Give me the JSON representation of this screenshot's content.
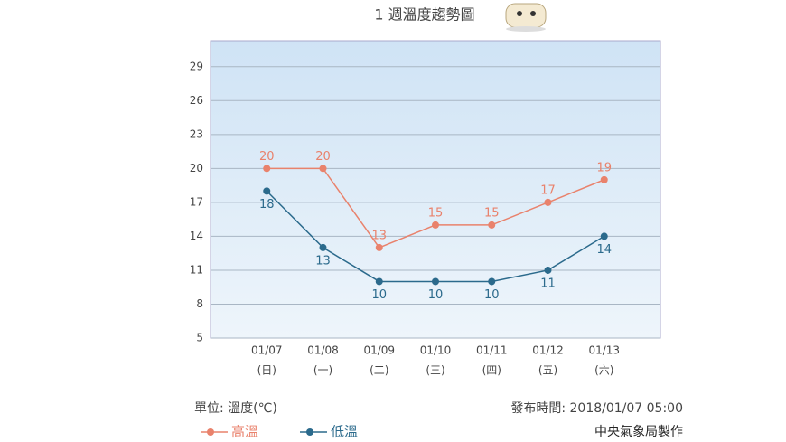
{
  "chart_data": {
    "type": "line",
    "title": "1 週溫度趨勢圖",
    "categories": [
      "01/07",
      "01/08",
      "01/09",
      "01/10",
      "01/11",
      "01/12",
      "01/13"
    ],
    "weekdays": [
      "(日)",
      "(一)",
      "(二)",
      "(三)",
      "(四)",
      "(五)",
      "(六)"
    ],
    "series": [
      {
        "name": "高溫",
        "color": "#e9826c",
        "values": [
          20,
          20,
          13,
          15,
          15,
          17,
          19
        ]
      },
      {
        "name": "低溫",
        "color": "#2b6a8c",
        "values": [
          18,
          13,
          10,
          10,
          10,
          11,
          14
        ]
      }
    ],
    "ylim": [
      5,
      31.3
    ],
    "yticks": [
      5,
      8,
      11,
      14,
      17,
      20,
      23,
      26,
      29
    ],
    "grid": true,
    "unit_note": "單位: 溫度(℃)",
    "issued_note": "發布時間: 2018/01/07 05:00",
    "credit": "中央氣象局製作"
  }
}
